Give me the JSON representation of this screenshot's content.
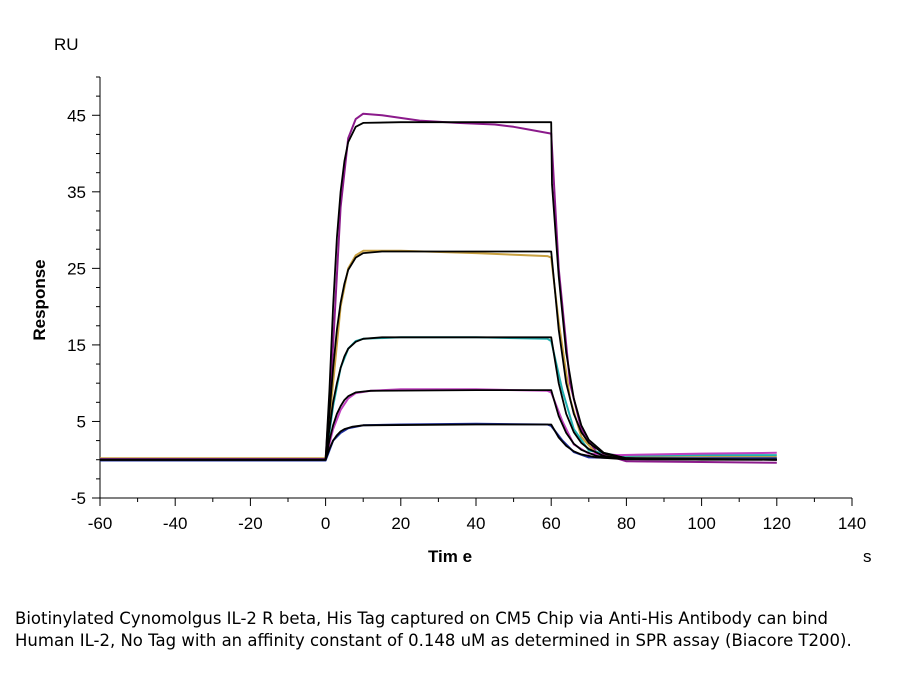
{
  "chart_data": {
    "type": "line",
    "y_unit": "RU",
    "x_unit": "s",
    "ylabel": "Response",
    "xlabel": "Tim e",
    "xlim": [
      -60,
      140
    ],
    "ylim": [
      -5,
      50
    ],
    "x_ticks": [
      -60,
      -40,
      -20,
      0,
      20,
      40,
      60,
      80,
      100,
      120,
      140
    ],
    "y_ticks": [
      -5,
      5,
      15,
      25,
      35,
      45
    ],
    "grid": false,
    "legend": "none",
    "association_start": 0,
    "dissociation_start": 60,
    "series": [
      {
        "color": "#8B1A8B",
        "points": [
          [
            -60,
            0.0
          ],
          [
            0,
            0.0
          ],
          [
            2,
            15
          ],
          [
            4,
            33
          ],
          [
            6,
            42
          ],
          [
            8,
            44.5
          ],
          [
            10,
            45.2
          ],
          [
            15,
            45.0
          ],
          [
            25,
            44.3
          ],
          [
            35,
            44.0
          ],
          [
            45,
            43.8
          ],
          [
            50,
            43.5
          ],
          [
            60,
            42.6
          ],
          [
            62,
            25
          ],
          [
            65,
            10
          ],
          [
            68,
            4
          ],
          [
            72,
            1.0
          ],
          [
            80,
            -0.2
          ],
          [
            100,
            -0.3
          ],
          [
            120,
            -0.4
          ]
        ]
      },
      {
        "color": "#C8A040",
        "points": [
          [
            -60,
            0.2
          ],
          [
            0,
            0.2
          ],
          [
            2,
            10
          ],
          [
            4,
            20
          ],
          [
            6,
            25
          ],
          [
            8,
            26.7
          ],
          [
            10,
            27.3
          ],
          [
            20,
            27.3
          ],
          [
            40,
            27.0
          ],
          [
            59,
            26.6
          ],
          [
            60,
            26.4
          ],
          [
            62,
            18
          ],
          [
            65,
            8
          ],
          [
            68,
            3
          ],
          [
            72,
            0.8
          ],
          [
            80,
            0.3
          ],
          [
            120,
            0.4
          ]
        ]
      },
      {
        "color": "#20B0B0",
        "points": [
          [
            -60,
            0.0
          ],
          [
            0,
            0.0
          ],
          [
            2,
            7
          ],
          [
            4,
            12
          ],
          [
            6,
            14.5
          ],
          [
            8,
            15.5
          ],
          [
            10,
            15.8
          ],
          [
            20,
            16.0
          ],
          [
            40,
            16.0
          ],
          [
            59,
            15.8
          ],
          [
            60,
            15.5
          ],
          [
            63,
            9
          ],
          [
            66,
            4
          ],
          [
            70,
            1.2
          ],
          [
            78,
            0.5
          ],
          [
            100,
            0.6
          ],
          [
            120,
            0.6
          ]
        ]
      },
      {
        "color": "#C040C0",
        "points": [
          [
            -60,
            0.1
          ],
          [
            0,
            0.1
          ],
          [
            2,
            4
          ],
          [
            4,
            6.5
          ],
          [
            6,
            8.0
          ],
          [
            8,
            8.7
          ],
          [
            12,
            9.0
          ],
          [
            20,
            9.2
          ],
          [
            40,
            9.2
          ],
          [
            59,
            9.0
          ],
          [
            60,
            8.8
          ],
          [
            63,
            5
          ],
          [
            66,
            2
          ],
          [
            70,
            0.8
          ],
          [
            78,
            0.6
          ],
          [
            100,
            0.8
          ],
          [
            120,
            0.9
          ]
        ]
      },
      {
        "color": "#2030A0",
        "points": [
          [
            -60,
            -0.1
          ],
          [
            0,
            -0.1
          ],
          [
            2,
            2.5
          ],
          [
            4,
            3.5
          ],
          [
            6,
            4.1
          ],
          [
            10,
            4.5
          ],
          [
            20,
            4.6
          ],
          [
            40,
            4.7
          ],
          [
            59,
            4.6
          ],
          [
            60,
            4.4
          ],
          [
            63,
            2.5
          ],
          [
            66,
            1.0
          ],
          [
            70,
            0.3
          ],
          [
            80,
            0.2
          ],
          [
            120,
            0.2
          ]
        ]
      },
      {
        "color": "#000000",
        "points": [
          [
            -60,
            0
          ],
          [
            0,
            0
          ],
          [
            1,
            9
          ],
          [
            2,
            20
          ],
          [
            3,
            29
          ],
          [
            4,
            35
          ],
          [
            5,
            39
          ],
          [
            6,
            41.5
          ],
          [
            8,
            43.5
          ],
          [
            10,
            44.0
          ],
          [
            20,
            44.1
          ],
          [
            40,
            44.1
          ],
          [
            60,
            44.1
          ],
          [
            60.2,
            36
          ],
          [
            62,
            24
          ],
          [
            64,
            14
          ],
          [
            66,
            8
          ],
          [
            68,
            4.5
          ],
          [
            70,
            2.6
          ],
          [
            74,
            0.9
          ],
          [
            80,
            0.2
          ],
          [
            100,
            0.0
          ],
          [
            120,
            0.0
          ]
        ]
      },
      {
        "color": "#000000",
        "points": [
          [
            -60,
            0
          ],
          [
            0,
            0
          ],
          [
            1,
            6
          ],
          [
            2,
            12
          ],
          [
            3,
            17
          ],
          [
            4,
            20.5
          ],
          [
            5,
            23
          ],
          [
            6,
            24.8
          ],
          [
            8,
            26.4
          ],
          [
            10,
            27.0
          ],
          [
            15,
            27.2
          ],
          [
            40,
            27.2
          ],
          [
            60,
            27.2
          ],
          [
            62,
            17
          ],
          [
            64,
            10
          ],
          [
            66,
            6
          ],
          [
            68,
            3.6
          ],
          [
            70,
            2.2
          ],
          [
            74,
            0.8
          ],
          [
            80,
            0.2
          ],
          [
            120,
            0.0
          ]
        ]
      },
      {
        "color": "#000000",
        "points": [
          [
            -60,
            0
          ],
          [
            0,
            0
          ],
          [
            1,
            4
          ],
          [
            2,
            7.5
          ],
          [
            3,
            10
          ],
          [
            4,
            12
          ],
          [
            5,
            13.5
          ],
          [
            6,
            14.5
          ],
          [
            8,
            15.4
          ],
          [
            10,
            15.8
          ],
          [
            15,
            16.0
          ],
          [
            40,
            16.0
          ],
          [
            60,
            16.0
          ],
          [
            62,
            10
          ],
          [
            64,
            6
          ],
          [
            66,
            3.6
          ],
          [
            68,
            2.2
          ],
          [
            70,
            1.4
          ],
          [
            74,
            0.5
          ],
          [
            80,
            0.1
          ],
          [
            120,
            0.0
          ]
        ]
      },
      {
        "color": "#000000",
        "points": [
          [
            -60,
            0
          ],
          [
            0,
            0
          ],
          [
            1,
            2.5
          ],
          [
            2,
            4.5
          ],
          [
            3,
            6
          ],
          [
            4,
            7
          ],
          [
            5,
            7.8
          ],
          [
            6,
            8.3
          ],
          [
            8,
            8.8
          ],
          [
            12,
            9.0
          ],
          [
            40,
            9.1
          ],
          [
            60,
            9.1
          ],
          [
            62,
            5.7
          ],
          [
            64,
            3.5
          ],
          [
            66,
            2.1
          ],
          [
            68,
            1.3
          ],
          [
            72,
            0.5
          ],
          [
            80,
            0.1
          ],
          [
            120,
            0.0
          ]
        ]
      },
      {
        "color": "#000000",
        "points": [
          [
            -60,
            0
          ],
          [
            0,
            0
          ],
          [
            1,
            1.4
          ],
          [
            2,
            2.5
          ],
          [
            3,
            3.2
          ],
          [
            4,
            3.7
          ],
          [
            5,
            4.0
          ],
          [
            7,
            4.3
          ],
          [
            10,
            4.5
          ],
          [
            40,
            4.6
          ],
          [
            60,
            4.6
          ],
          [
            62,
            2.9
          ],
          [
            64,
            1.8
          ],
          [
            66,
            1.1
          ],
          [
            68,
            0.7
          ],
          [
            72,
            0.3
          ],
          [
            80,
            0.05
          ],
          [
            120,
            0.0
          ]
        ]
      }
    ]
  },
  "caption": "Biotinylated Cynomolgus IL-2 R beta, His Tag captured on CM5 Chip via Anti-His Antibody can bind Human IL-2, No Tag with an affinity constant of 0.148 uM as determined in SPR assay (Biacore T200)."
}
